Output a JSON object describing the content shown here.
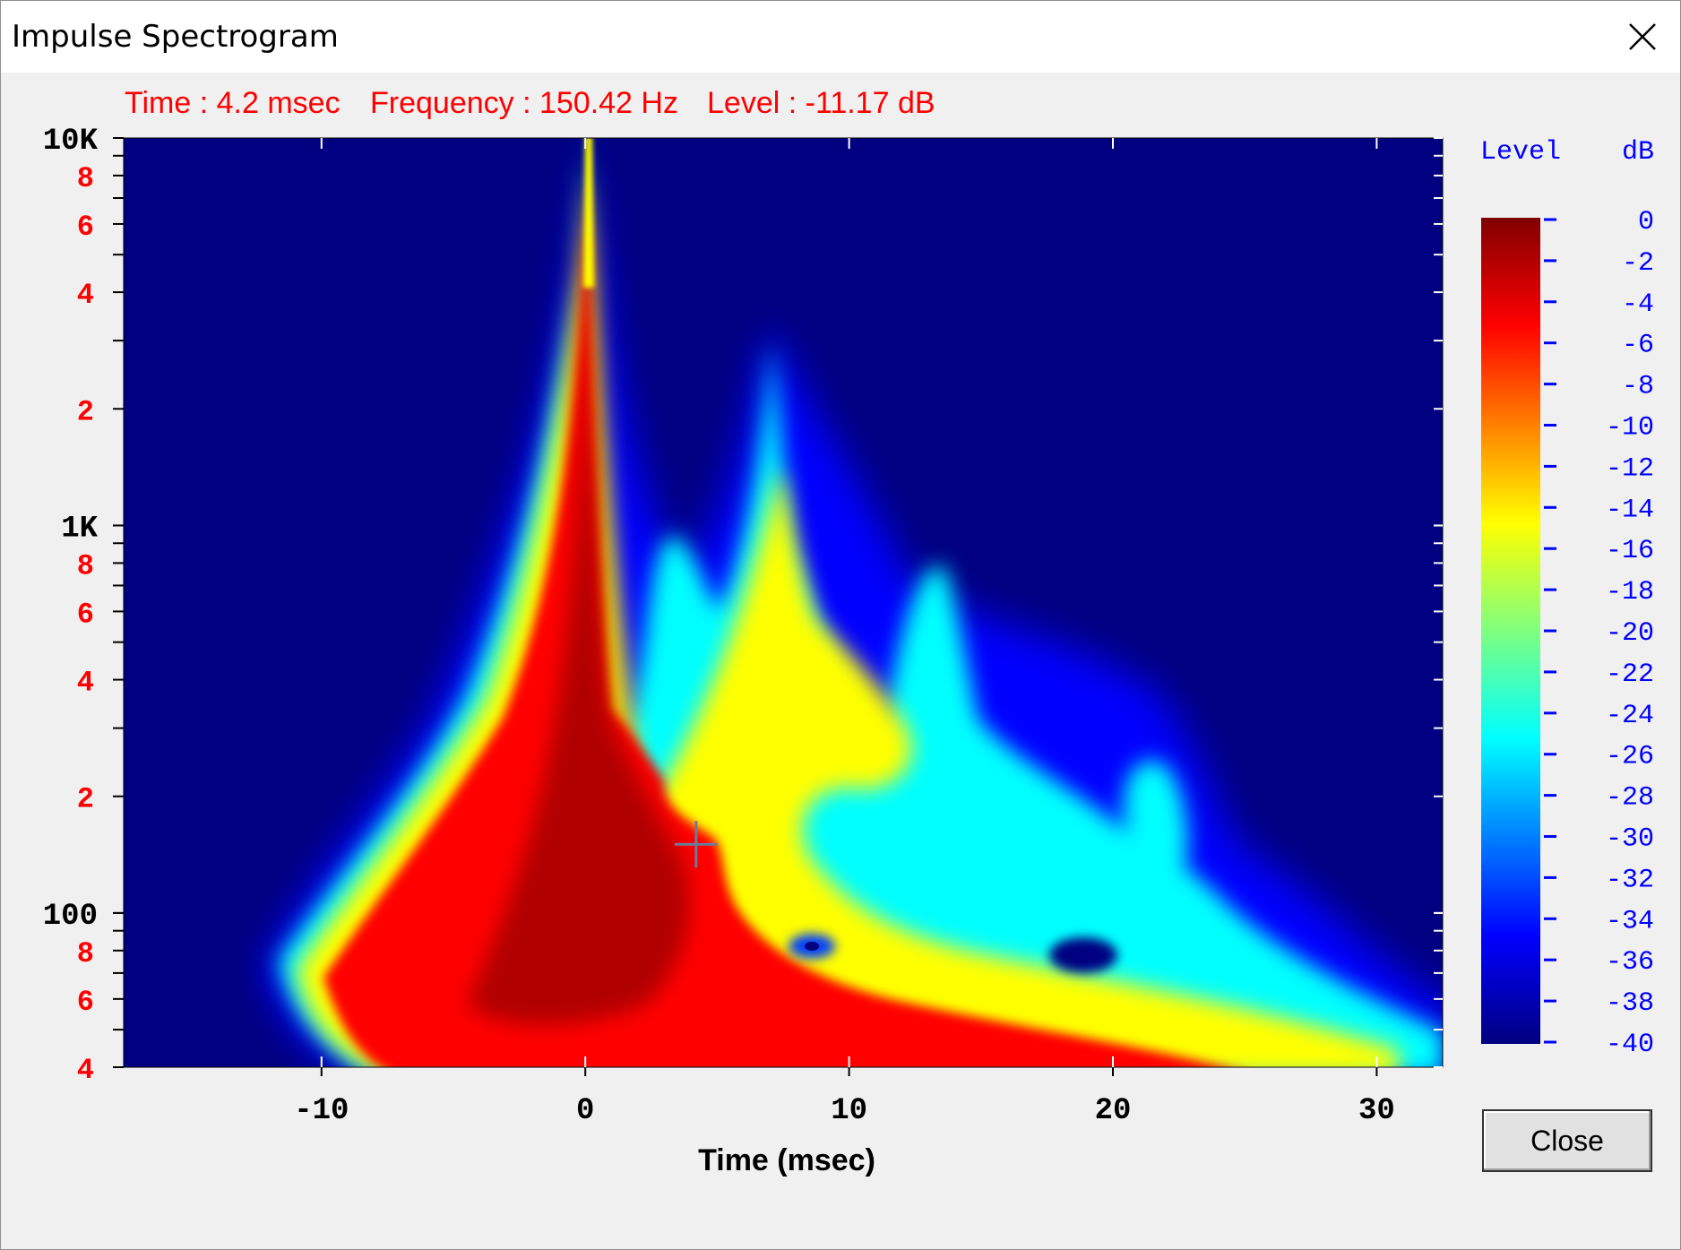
{
  "window": {
    "title": "Impulse Spectrogram",
    "close_icon": "close-x-icon"
  },
  "readout": {
    "time": "Time : 4.2 msec",
    "frequency": "Frequency : 150.42 Hz",
    "level": "Level : -11.17 dB"
  },
  "buttons": {
    "close_label": "Close"
  },
  "chart_data": {
    "type": "heatmap",
    "xlabel": "Time (msec)",
    "ylabel": "",
    "x_range": [
      -17.5,
      32.5
    ],
    "y_range": [
      40,
      10000
    ],
    "y_scale": "log",
    "x_ticks": [
      "-10",
      "0",
      "10",
      "20",
      "30"
    ],
    "x_tick_values": [
      -10,
      0,
      10,
      20,
      30
    ],
    "y_major_ticks": [
      {
        "label": "10K",
        "value": 10000
      },
      {
        "label": "1K",
        "value": 1000
      },
      {
        "label": "100",
        "value": 100
      }
    ],
    "y_minor_ticks": [
      {
        "label": "8",
        "value": 8000
      },
      {
        "label": "6",
        "value": 6000
      },
      {
        "label": "4",
        "value": 4000
      },
      {
        "label": "2",
        "value": 2000
      },
      {
        "label": "8",
        "value": 800
      },
      {
        "label": "6",
        "value": 600
      },
      {
        "label": "4",
        "value": 400
      },
      {
        "label": "2",
        "value": 200
      },
      {
        "label": "8",
        "value": 80
      },
      {
        "label": "6",
        "value": 60
      },
      {
        "label": "4",
        "value": 40
      }
    ],
    "cursor": {
      "time_ms": 4.2,
      "frequency_hz": 150.42,
      "level_db": -11.17
    },
    "colorbar": {
      "title": "Level",
      "unit": "dB",
      "range": [
        -40,
        0
      ],
      "tick_labels": [
        "0",
        "-2",
        "-4",
        "-6",
        "-8",
        "-10",
        "-12",
        "-14",
        "-16",
        "-18",
        "-20",
        "-22",
        "-24",
        "-26",
        "-28",
        "-30",
        "-32",
        "-34",
        "-36",
        "-38",
        "-40"
      ]
    },
    "colormap": [
      "#000080",
      "#0000ff",
      "#00ffff",
      "#ffff00",
      "#ff0000",
      "#800000"
    ],
    "colors": {
      "axis_major": "#000000",
      "axis_minor": "#ff0000",
      "colorbar_text": "#0000ff"
    },
    "features": [
      {
        "time_ms": 0,
        "frequency_hz": 10000,
        "level_db": 0,
        "description": "main impulse"
      },
      {
        "time_ms": 7.5,
        "frequency_hz": 3000,
        "level_db": -26
      },
      {
        "time_ms": 8.5,
        "frequency_hz": 3000,
        "level_db": -26
      },
      {
        "time_ms": 15,
        "frequency_hz": 500,
        "level_db": -30
      },
      {
        "time_ms": 22,
        "frequency_hz": 300,
        "level_db": -32
      }
    ]
  }
}
